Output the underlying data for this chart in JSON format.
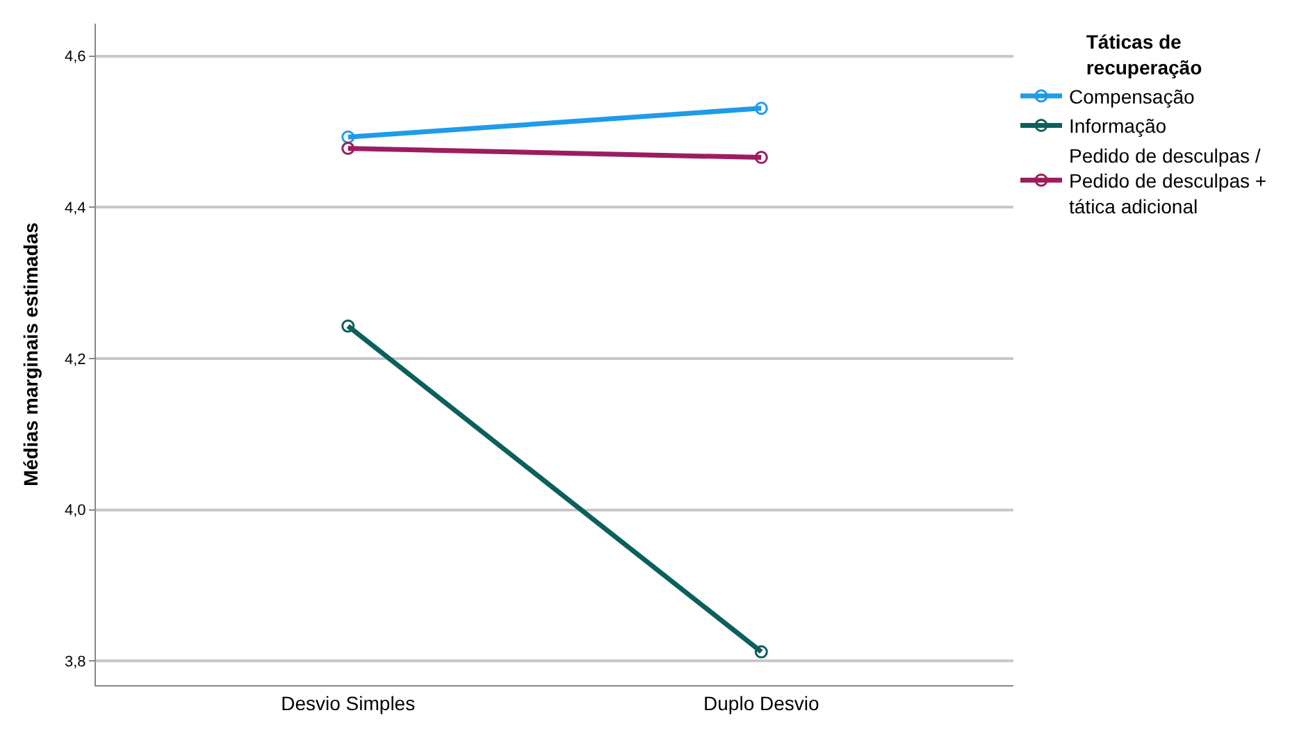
{
  "chart_data": {
    "type": "line",
    "ylabel": "Médias marginais estimadas",
    "legend_title": "Táticas de recuperação",
    "categories": [
      "Desvio Simples",
      "Duplo Desvio"
    ],
    "series": [
      {
        "name": "Compensação",
        "color": "#1e9be9",
        "values": [
          4.493,
          4.531
        ]
      },
      {
        "name": "Informação",
        "color": "#0b5f5c",
        "values": [
          4.243,
          3.812
        ]
      },
      {
        "name": "Pedido de desculpas / Pedido de desculpas + tática adicional",
        "color": "#9c1d5e",
        "values": [
          4.478,
          4.466
        ]
      }
    ],
    "ylim": [
      3.768,
      4.643
    ],
    "yticks": [
      {
        "value": 3.8,
        "label": "3,8"
      },
      {
        "value": 4.0,
        "label": "4,0"
      },
      {
        "value": 4.2,
        "label": "4,2"
      },
      {
        "value": 4.4,
        "label": "4,4"
      },
      {
        "value": 4.6,
        "label": "4,6"
      }
    ],
    "grid": "y",
    "legend": "right",
    "marker": "circle",
    "line_style": "solid"
  }
}
